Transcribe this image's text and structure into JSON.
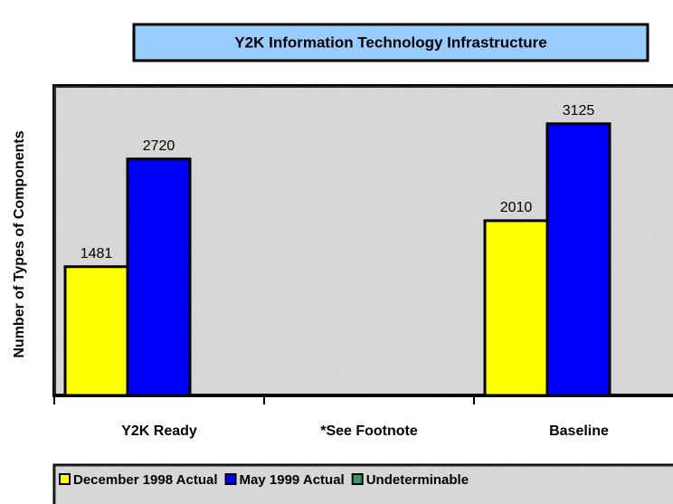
{
  "chart_data": {
    "type": "bar",
    "title": "Y2K Information Technology Infrastructure",
    "y_label": "Number of Types of Components",
    "categories": [
      "Y2K Ready",
      "*See Footnote",
      "Baseline"
    ],
    "series": [
      {
        "name": "December 1998 Actual",
        "color": "#ffff00",
        "values": [
          1481,
          null,
          2010
        ]
      },
      {
        "name": "May 1999 Actual",
        "color": "#0000ff",
        "values": [
          2720,
          null,
          3125
        ]
      },
      {
        "name": "Undeterminable",
        "color": "#339966",
        "values": [
          null,
          null,
          null
        ]
      }
    ],
    "ylim": [
      0,
      3560
    ]
  }
}
